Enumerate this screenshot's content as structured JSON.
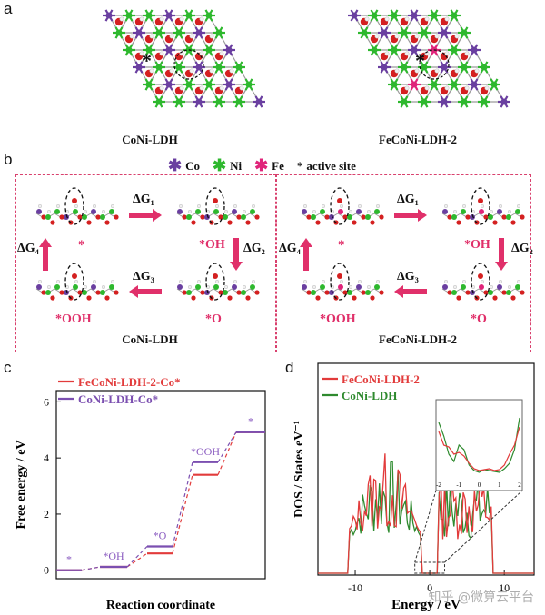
{
  "panels": {
    "a": "a",
    "b": "b",
    "c": "c",
    "d": "d"
  },
  "panel_a": {
    "left_caption": "CoNi-LDH",
    "right_caption": "FeCoNi-LDH-2",
    "star": "*"
  },
  "panel_b": {
    "legend": {
      "co": "Co",
      "ni": "Ni",
      "fe": "Fe",
      "star": "*",
      "active": "active site"
    },
    "colors": {
      "co": "#6a3fa0",
      "ni": "#2eb82e",
      "fe": "#e0247a",
      "o": "#d42020",
      "h": "#f0f0f0",
      "accent": "#e0306a",
      "border": "#d9416e"
    },
    "left": {
      "caption": "CoNi-LDH",
      "dg1": "ΔG₁",
      "dg2": "ΔG₂",
      "dg3": "ΔG₃",
      "dg4": "ΔG₄",
      "s1": "*",
      "s2": "*OH",
      "s3": "*O",
      "s4": "*OOH"
    },
    "right": {
      "caption": "FeCoNi-LDH-2",
      "dg1": "ΔG₁",
      "dg2": "ΔG₂",
      "dg3": "ΔG₃",
      "dg4": "ΔG₄",
      "s1": "*",
      "s2": "*OH",
      "s3": "*O",
      "s4": "*OOH"
    }
  },
  "chart_data": [
    {
      "type": "line",
      "title": "",
      "xlabel": "Reaction coordinate",
      "ylabel": "Free energy / eV",
      "yticks": [
        "0",
        "2",
        "4",
        "6"
      ],
      "ylim": [
        -0.3,
        6.4
      ],
      "states": [
        "*",
        "*OH",
        "*O",
        "*OOH",
        "*"
      ],
      "series": [
        {
          "name": "FeCoNi-LDH-2-Co*",
          "color": "#e23b3b",
          "values": [
            0,
            0.12,
            0.6,
            3.4,
            4.92
          ]
        },
        {
          "name": "CoNi-LDH-Co*",
          "color": "#7b4fb0",
          "values": [
            0,
            0.12,
            0.85,
            3.85,
            4.92
          ]
        }
      ]
    },
    {
      "type": "line",
      "title": "",
      "xlabel": "Energy / eV",
      "ylabel": "DOS / States eV⁻¹",
      "xticks": [
        "-10",
        "0",
        "10"
      ],
      "xlim": [
        -15,
        14
      ],
      "series": [
        {
          "name": "FeCoNi-LDH-2",
          "color": "#e23b3b"
        },
        {
          "name": "CoNi-LDH",
          "color": "#2e8a2e"
        }
      ],
      "inset": {
        "xticks": [
          "-2",
          "-1",
          "0",
          "1",
          "2"
        ],
        "xlim": [
          -2,
          2
        ]
      }
    }
  ],
  "watermark": "知乎 @微算云平台"
}
